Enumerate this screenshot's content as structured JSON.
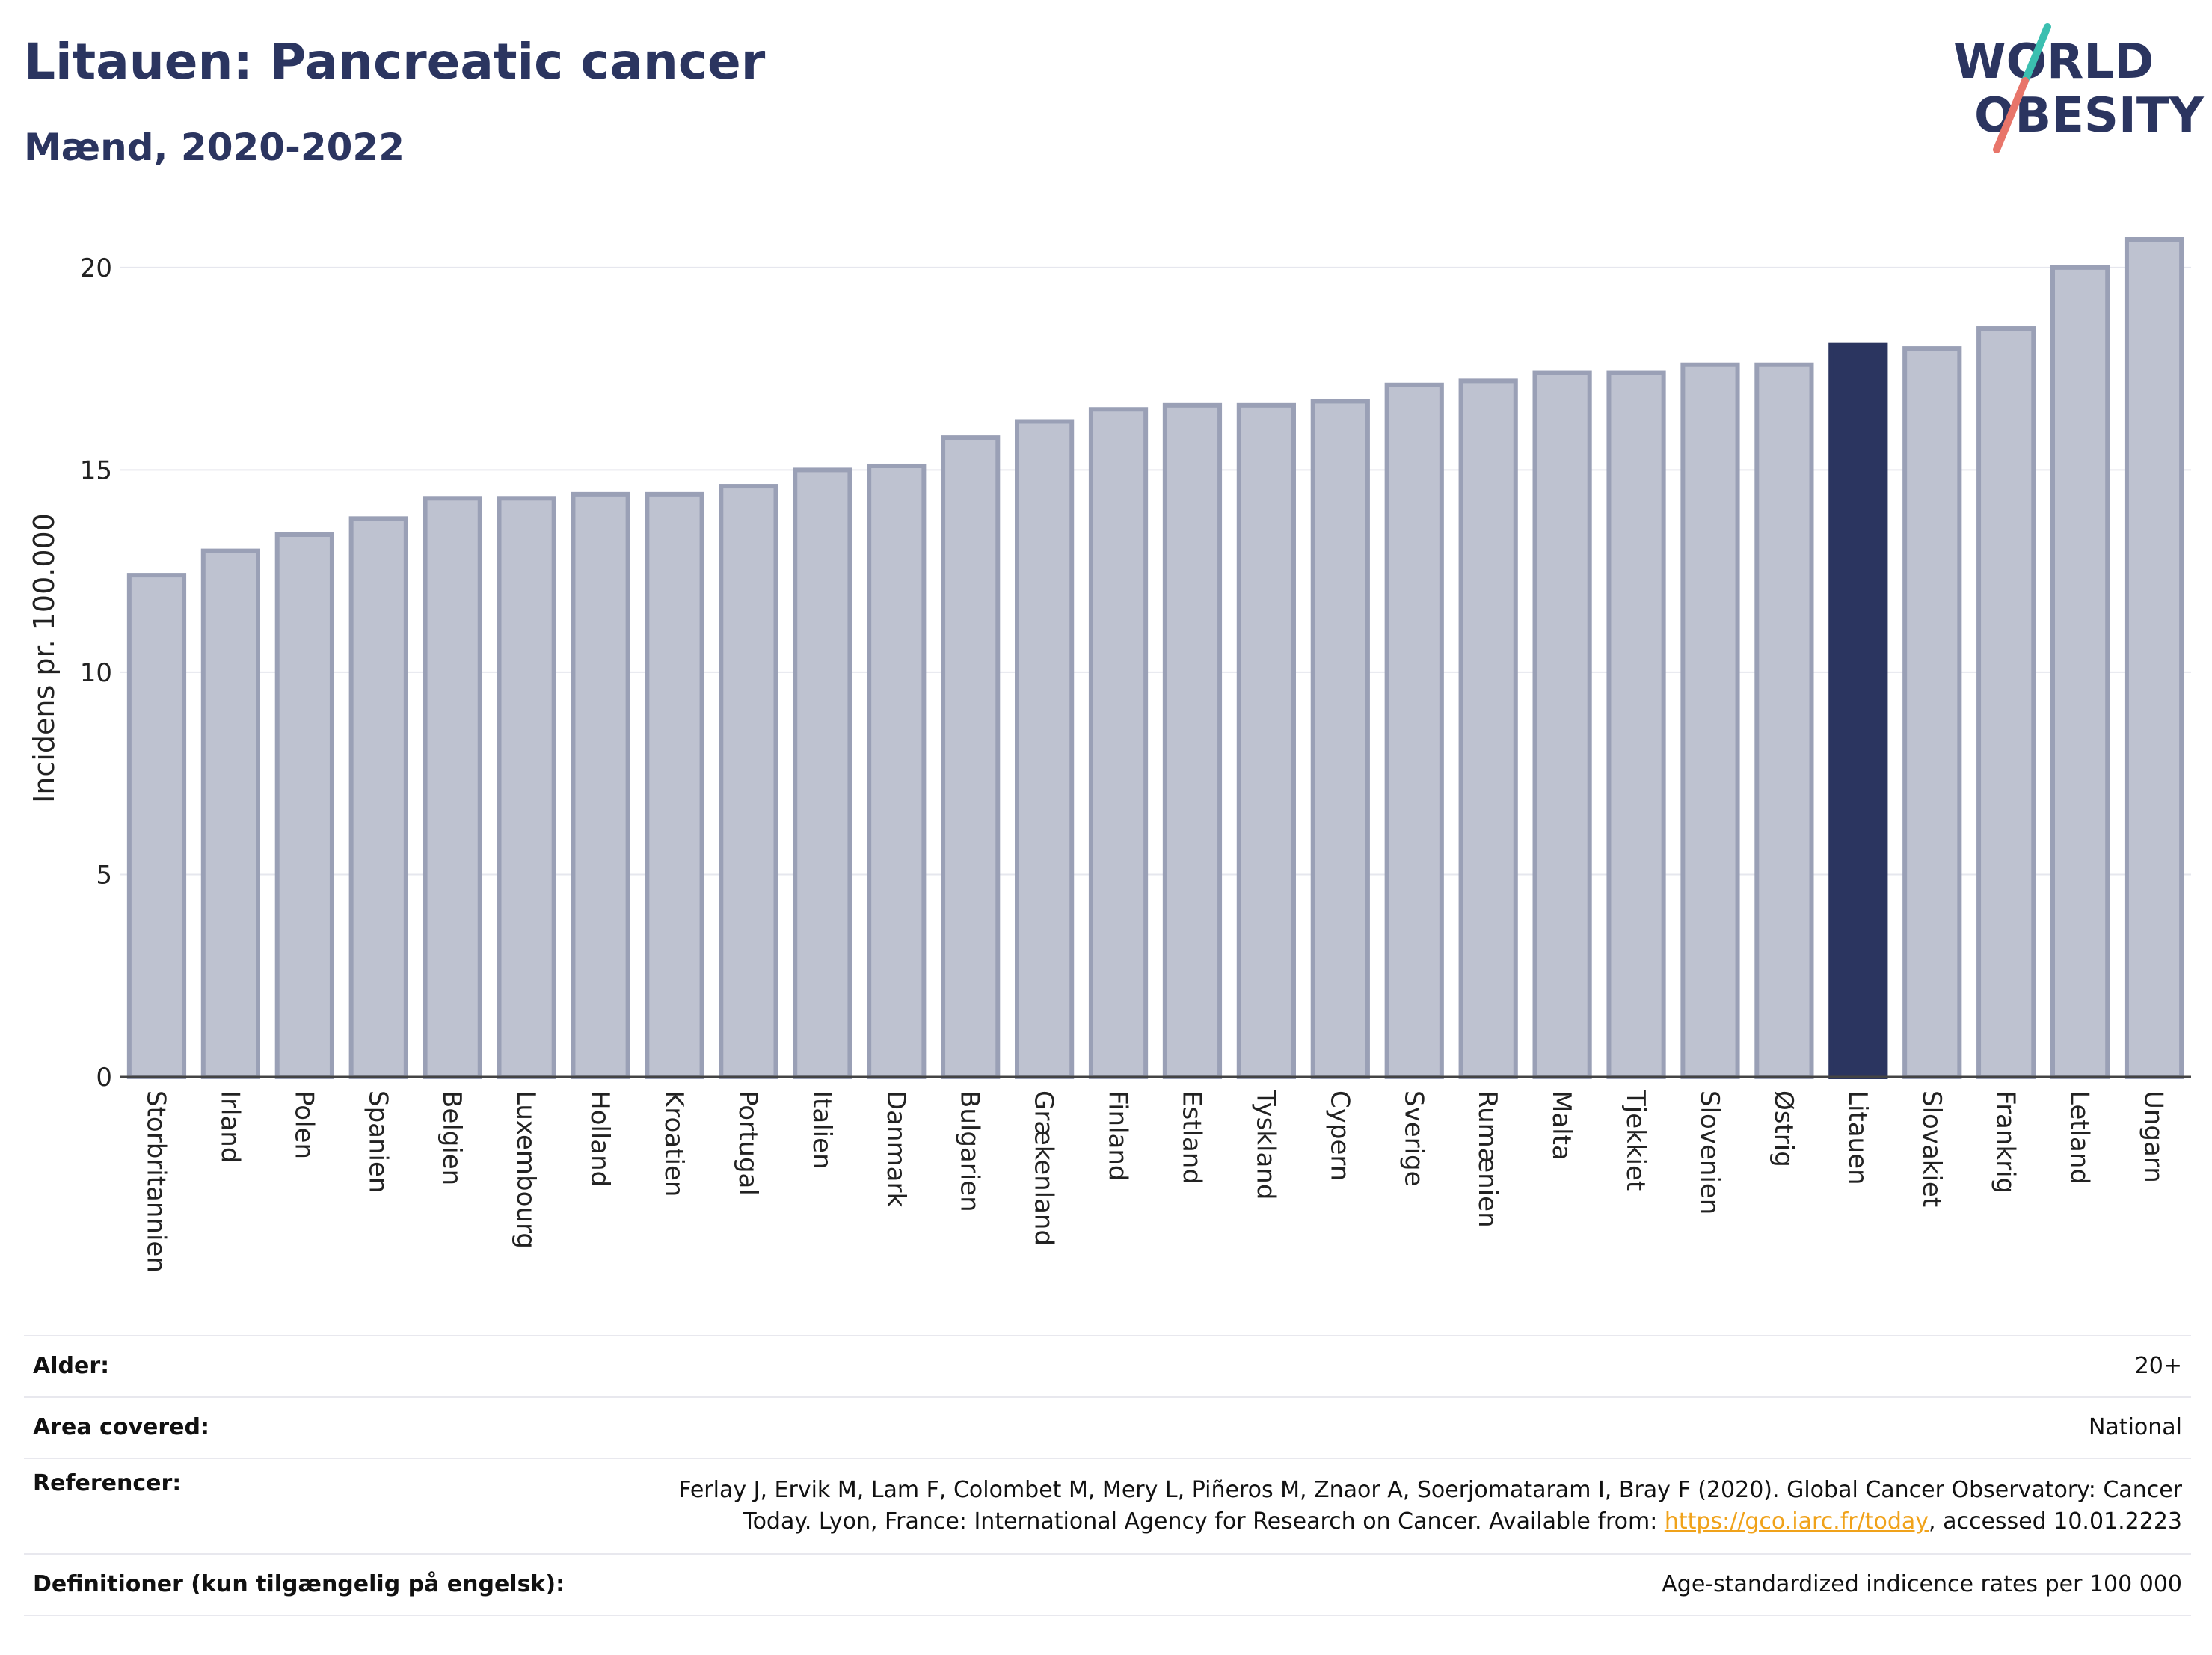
{
  "header": {
    "title": "Litauen: Pancreatic cancer",
    "subtitle": "Mænd, 2020-2022"
  },
  "logo": {
    "line1": "WORLD",
    "line2": "OBESITY"
  },
  "colors": {
    "bar_fill": "#bec2d0",
    "bar_stroke": "#9aa0b6",
    "highlight": "#2b3560",
    "title": "#2b3560",
    "link": "#f0a21a",
    "logo_teal": "#3bbfb0",
    "logo_coral": "#e8756a"
  },
  "chart_data": {
    "type": "bar",
    "categories": [
      "Storbritannien",
      "Irland",
      "Polen",
      "Spanien",
      "Belgien",
      "Luxembourg",
      "Holland",
      "Kroatien",
      "Portugal",
      "Italien",
      "Danmark",
      "Bulgarien",
      "Grækenland",
      "Finland",
      "Estland",
      "Tyskland",
      "Cypern",
      "Sverige",
      "Rumænien",
      "Malta",
      "Tjekkiet",
      "Slovenien",
      "Østrig",
      "Litauen",
      "Slovakiet",
      "Frankrig",
      "Letland",
      "Ungarn"
    ],
    "values": [
      12.4,
      13.0,
      13.4,
      13.8,
      14.3,
      14.3,
      14.4,
      14.4,
      14.6,
      15.0,
      15.1,
      15.8,
      16.2,
      16.5,
      16.6,
      16.6,
      16.7,
      17.1,
      17.2,
      17.4,
      17.4,
      17.6,
      17.6,
      18.1,
      18.0,
      18.5,
      20.0,
      20.7
    ],
    "highlight": "Litauen",
    "ylabel": "Incidens pr. 100.000",
    "xlabel": "",
    "ylim": [
      0,
      20.7
    ],
    "yticks": [
      0,
      5,
      10,
      15,
      20
    ],
    "grid": true
  },
  "info": [
    {
      "label": "Alder:",
      "value": "20+"
    },
    {
      "label": "Area covered:",
      "value": "National"
    },
    {
      "label": "Referencer:",
      "value_line1": "Ferlay J, Ervik M, Lam F, Colombet M, Mery L, Piñeros M, Znaor A, Soerjomataram I, Bray F (2020). Global Cancer Observatory: Cancer",
      "value_line2_pre": "Today. Lyon, France: International Agency for Research on Cancer. Available from: ",
      "link": "https://gco.iarc.fr/today",
      "value_line2_post": ", accessed 10.01.2223"
    },
    {
      "label": "Definitioner (kun tilgængelig på engelsk):",
      "value": "Age-standardized indicence rates per 100 000"
    }
  ]
}
